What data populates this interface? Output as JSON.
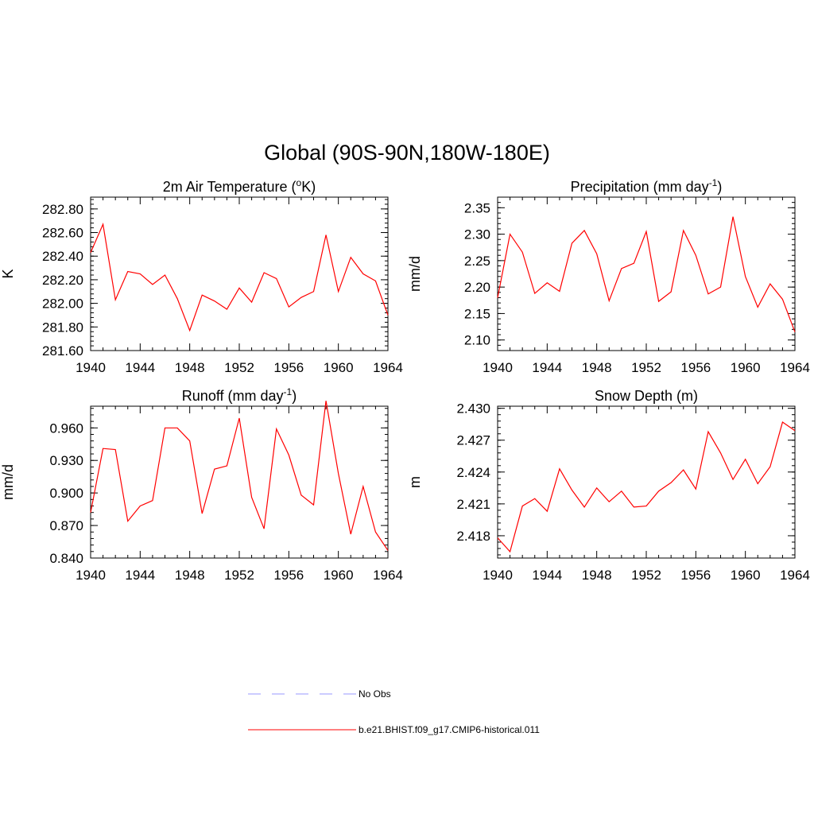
{
  "figure": {
    "title": "Global (90S-90N,180W-180E)"
  },
  "legend": {
    "entries": [
      {
        "label": "No Obs",
        "color": "#9999ff",
        "dash": true
      },
      {
        "label": "b.e21.BHIST.f09_g17.CMIP6-historical.011",
        "color": "#ff0000",
        "dash": false
      }
    ]
  },
  "colors": {
    "series": "#ff0000",
    "axis": "#000000",
    "obs": "#9999ff"
  },
  "chart_data": [
    {
      "type": "line",
      "title": "2m Air Temperature (",
      "title_sup": "o",
      "title_tail": "K)",
      "ylabel": "K",
      "xlim": [
        1940,
        1964
      ],
      "ylim": [
        281.6,
        282.9
      ],
      "x_ticks": [
        1940,
        1944,
        1948,
        1952,
        1956,
        1960,
        1964
      ],
      "y_ticks": [
        281.6,
        281.8,
        282.0,
        282.2,
        282.4,
        282.6,
        282.8
      ],
      "y_tick_labels": [
        "281.60",
        "281.80",
        "282.00",
        "282.20",
        "282.40",
        "282.60",
        "282.80"
      ],
      "x": [
        1940,
        1941,
        1942,
        1943,
        1944,
        1945,
        1946,
        1947,
        1948,
        1949,
        1950,
        1951,
        1952,
        1953,
        1954,
        1955,
        1956,
        1957,
        1958,
        1959,
        1960,
        1961,
        1962,
        1963,
        1964
      ],
      "series": [
        {
          "values": [
            282.43,
            282.67,
            282.03,
            282.27,
            282.25,
            282.16,
            282.24,
            282.04,
            281.77,
            282.07,
            282.02,
            281.95,
            282.13,
            282.01,
            282.26,
            282.21,
            281.97,
            282.05,
            282.1,
            282.58,
            282.1,
            282.39,
            282.25,
            282.19,
            281.9
          ]
        }
      ]
    },
    {
      "type": "line",
      "title": "Precipitation (mm day",
      "title_sup": "-1",
      "title_tail": ")",
      "ylabel": "mm/d",
      "xlim": [
        1940,
        1964
      ],
      "ylim": [
        2.08,
        2.37
      ],
      "x_ticks": [
        1940,
        1944,
        1948,
        1952,
        1956,
        1960,
        1964
      ],
      "y_ticks": [
        2.1,
        2.15,
        2.2,
        2.25,
        2.3,
        2.35
      ],
      "y_tick_labels": [
        "2.10",
        "2.15",
        "2.20",
        "2.25",
        "2.30",
        "2.35"
      ],
      "x": [
        1940,
        1941,
        1942,
        1943,
        1944,
        1945,
        1946,
        1947,
        1948,
        1949,
        1950,
        1951,
        1952,
        1953,
        1954,
        1955,
        1956,
        1957,
        1958,
        1959,
        1960,
        1961,
        1962,
        1963,
        1964
      ],
      "series": [
        {
          "values": [
            2.18,
            2.3,
            2.266,
            2.188,
            2.208,
            2.192,
            2.283,
            2.307,
            2.263,
            2.174,
            2.235,
            2.245,
            2.305,
            2.173,
            2.191,
            2.307,
            2.26,
            2.187,
            2.2,
            2.333,
            2.22,
            2.162,
            2.206,
            2.177,
            2.115
          ]
        }
      ]
    },
    {
      "type": "line",
      "title": "Runoff (mm day",
      "title_sup": "-1",
      "title_tail": ")",
      "ylabel": "mm/d",
      "xlim": [
        1940,
        1964
      ],
      "ylim": [
        0.84,
        0.98
      ],
      "x_ticks": [
        1940,
        1944,
        1948,
        1952,
        1956,
        1960,
        1964
      ],
      "y_ticks": [
        0.84,
        0.87,
        0.9,
        0.93,
        0.96
      ],
      "y_tick_labels": [
        "0.840",
        "0.870",
        "0.900",
        "0.930",
        "0.960"
      ],
      "x": [
        1940,
        1941,
        1942,
        1943,
        1944,
        1945,
        1946,
        1947,
        1948,
        1949,
        1950,
        1951,
        1952,
        1953,
        1954,
        1955,
        1956,
        1957,
        1958,
        1959,
        1960,
        1961,
        1962,
        1963,
        1964
      ],
      "series": [
        {
          "values": [
            0.882,
            0.941,
            0.94,
            0.874,
            0.888,
            0.893,
            0.96,
            0.96,
            0.948,
            0.881,
            0.922,
            0.925,
            0.969,
            0.896,
            0.867,
            0.959,
            0.935,
            0.898,
            0.889,
            0.985,
            0.918,
            0.862,
            0.906,
            0.864,
            0.847
          ]
        }
      ]
    },
    {
      "type": "line",
      "title": "Snow Depth (m)",
      "title_sup": "",
      "title_tail": "",
      "ylabel": "m",
      "xlim": [
        1940,
        1964
      ],
      "ylim": [
        2.4159,
        2.4302
      ],
      "x_ticks": [
        1940,
        1944,
        1948,
        1952,
        1956,
        1960,
        1964
      ],
      "y_ticks": [
        2.418,
        2.421,
        2.424,
        2.427,
        2.43
      ],
      "y_tick_labels": [
        "2.418",
        "2.421",
        "2.424",
        "2.427",
        "2.430"
      ],
      "x": [
        1940,
        1941,
        1942,
        1943,
        1944,
        1945,
        1946,
        1947,
        1948,
        1949,
        1950,
        1951,
        1952,
        1953,
        1954,
        1955,
        1956,
        1957,
        1958,
        1959,
        1960,
        1961,
        1962,
        1963,
        1964
      ],
      "series": [
        {
          "values": [
            2.4178,
            2.4165,
            2.4208,
            2.4215,
            2.4203,
            2.4243,
            2.4223,
            2.4207,
            2.4225,
            2.4212,
            2.4222,
            2.4207,
            2.4208,
            2.4222,
            2.423,
            2.4242,
            2.4224,
            2.4278,
            2.4258,
            2.4233,
            2.4252,
            2.4229,
            2.4245,
            2.4287,
            2.4279
          ]
        }
      ]
    }
  ]
}
